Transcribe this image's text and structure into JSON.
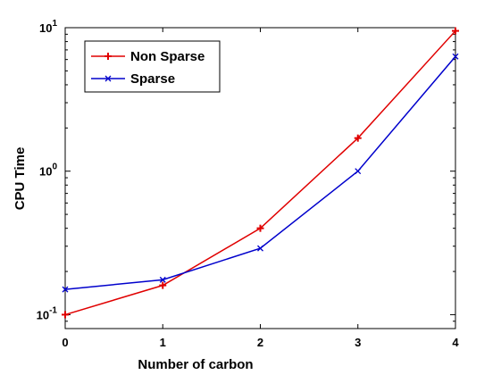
{
  "chart_data": {
    "type": "line",
    "x": [
      0,
      1,
      2,
      3,
      4
    ],
    "xlabel": "Number of carbon",
    "ylabel": "CPU Time",
    "xlim": [
      0,
      4
    ],
    "ylim": [
      0.08,
      10
    ],
    "yscale": "log",
    "xticks": [
      "0",
      "1",
      "2",
      "3",
      "4"
    ],
    "yticks": [
      {
        "value": 0.1,
        "base": "10",
        "exp": "-1"
      },
      {
        "value": 1,
        "base": "10",
        "exp": "0"
      },
      {
        "value": 10,
        "base": "10",
        "exp": "1"
      }
    ],
    "grid": false,
    "legend_position": "top-left",
    "series": [
      {
        "name": "Non Sparse",
        "values": [
          0.1,
          0.16,
          0.4,
          1.7,
          9.5
        ],
        "color": "#e00000",
        "marker": "plus"
      },
      {
        "name": "Sparse",
        "values": [
          0.15,
          0.175,
          0.29,
          1.0,
          6.3
        ],
        "color": "#0000cc",
        "marker": "x"
      }
    ]
  }
}
